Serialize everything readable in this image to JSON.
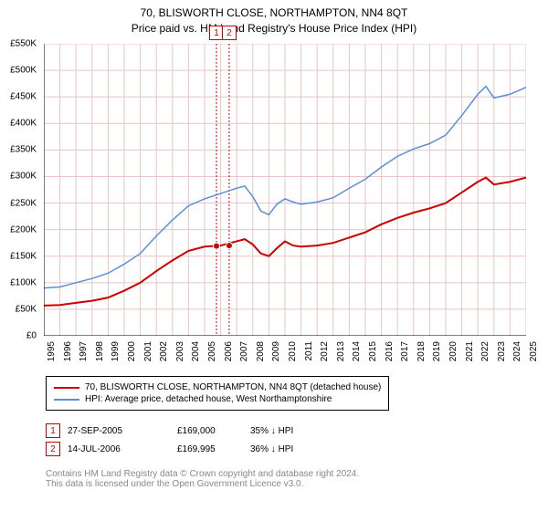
{
  "title": {
    "line1": "70, BLISWORTH CLOSE, NORTHAMPTON, NN4 8QT",
    "line2": "Price paid vs. HM Land Registry's House Price Index (HPI)"
  },
  "chart": {
    "type": "line",
    "background_color": "#ffffff",
    "grid_color": "#e8c4c4",
    "axis_color": "#000000",
    "ylim": [
      0,
      550000
    ],
    "ytick_step": 50000,
    "ytick_labels": [
      "£0",
      "£50K",
      "£100K",
      "£150K",
      "£200K",
      "£250K",
      "£300K",
      "£350K",
      "£400K",
      "£450K",
      "£500K",
      "£550K"
    ],
    "x_years": [
      1995,
      1996,
      1997,
      1998,
      1999,
      2000,
      2001,
      2002,
      2003,
      2004,
      2005,
      2006,
      2007,
      2008,
      2009,
      2010,
      2011,
      2012,
      2013,
      2014,
      2015,
      2016,
      2017,
      2018,
      2019,
      2020,
      2021,
      2022,
      2023,
      2024,
      2025
    ],
    "series": [
      {
        "name": "70, BLISWORTH CLOSE, NORTHAMPTON, NN4 8QT (detached house)",
        "color": "#cc0000",
        "line_width": 2,
        "points": [
          [
            1995,
            57000
          ],
          [
            1996,
            58000
          ],
          [
            1997,
            62000
          ],
          [
            1998,
            66000
          ],
          [
            1999,
            72000
          ],
          [
            2000,
            85000
          ],
          [
            2001,
            100000
          ],
          [
            2002,
            122000
          ],
          [
            2003,
            142000
          ],
          [
            2004,
            160000
          ],
          [
            2005,
            168000
          ],
          [
            2006,
            170000
          ],
          [
            2007,
            178000
          ],
          [
            2007.5,
            182000
          ],
          [
            2008,
            172000
          ],
          [
            2008.5,
            155000
          ],
          [
            2009,
            150000
          ],
          [
            2009.5,
            165000
          ],
          [
            2010,
            178000
          ],
          [
            2010.5,
            170000
          ],
          [
            2011,
            168000
          ],
          [
            2012,
            170000
          ],
          [
            2013,
            175000
          ],
          [
            2014,
            185000
          ],
          [
            2015,
            195000
          ],
          [
            2016,
            210000
          ],
          [
            2017,
            222000
          ],
          [
            2018,
            232000
          ],
          [
            2019,
            240000
          ],
          [
            2020,
            250000
          ],
          [
            2021,
            270000
          ],
          [
            2022,
            290000
          ],
          [
            2022.5,
            298000
          ],
          [
            2023,
            285000
          ],
          [
            2024,
            290000
          ],
          [
            2025,
            298000
          ]
        ]
      },
      {
        "name": "HPI: Average price, detached house, West Northamptonshire",
        "color": "#5b8fd6",
        "line_width": 1.5,
        "points": [
          [
            1995,
            90000
          ],
          [
            1996,
            92000
          ],
          [
            1997,
            100000
          ],
          [
            1998,
            108000
          ],
          [
            1999,
            118000
          ],
          [
            2000,
            135000
          ],
          [
            2001,
            155000
          ],
          [
            2002,
            188000
          ],
          [
            2003,
            218000
          ],
          [
            2004,
            245000
          ],
          [
            2005,
            258000
          ],
          [
            2006,
            268000
          ],
          [
            2007,
            278000
          ],
          [
            2007.5,
            282000
          ],
          [
            2008,
            262000
          ],
          [
            2008.5,
            235000
          ],
          [
            2009,
            228000
          ],
          [
            2009.5,
            248000
          ],
          [
            2010,
            258000
          ],
          [
            2010.5,
            252000
          ],
          [
            2011,
            248000
          ],
          [
            2012,
            252000
          ],
          [
            2013,
            260000
          ],
          [
            2014,
            278000
          ],
          [
            2015,
            295000
          ],
          [
            2016,
            318000
          ],
          [
            2017,
            338000
          ],
          [
            2018,
            352000
          ],
          [
            2019,
            362000
          ],
          [
            2020,
            378000
          ],
          [
            2021,
            415000
          ],
          [
            2022,
            455000
          ],
          [
            2022.5,
            470000
          ],
          [
            2023,
            448000
          ],
          [
            2024,
            455000
          ],
          [
            2025,
            468000
          ]
        ]
      }
    ],
    "sale_markers": [
      {
        "id": "1",
        "year": 2005.74,
        "value": 169000,
        "color": "#cc0000"
      },
      {
        "id": "2",
        "year": 2006.53,
        "value": 169995,
        "color": "#cc0000"
      }
    ],
    "label_fontsize": 10,
    "title_fontsize": 12
  },
  "legend": {
    "series1_label": "70, BLISWORTH CLOSE, NORTHAMPTON, NN4 8QT (detached house)",
    "series2_label": "HPI: Average price, detached house, West Northamptonshire"
  },
  "sales": [
    {
      "marker": "1",
      "date": "27-SEP-2005",
      "price": "£169,000",
      "delta": "35% ↓ HPI"
    },
    {
      "marker": "2",
      "date": "14-JUL-2006",
      "price": "£169,995",
      "delta": "36% ↓ HPI"
    }
  ],
  "footer": {
    "line1": "Contains HM Land Registry data © Crown copyright and database right 2024.",
    "line2": "This data is licensed under the Open Government Licence v3.0."
  },
  "colors": {
    "series1": "#cc0000",
    "series2": "#5b8fd6",
    "marker_border": "#cc0000",
    "footer_text": "#888888"
  }
}
